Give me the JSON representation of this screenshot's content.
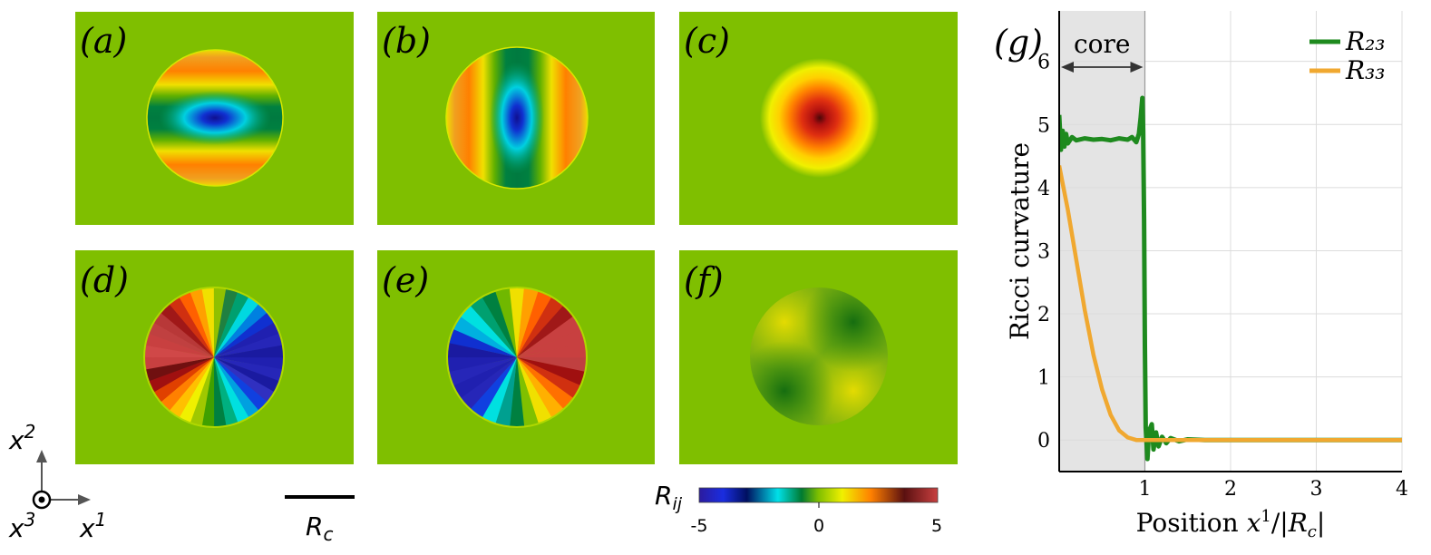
{
  "panels": [
    {
      "label": "(a)",
      "pattern": "a"
    },
    {
      "label": "(b)",
      "pattern": "b"
    },
    {
      "label": "(c)",
      "pattern": "c"
    },
    {
      "label": "(d)",
      "pattern": "d"
    },
    {
      "label": "(e)",
      "pattern": "e"
    },
    {
      "label": "(f)",
      "pattern": "f"
    }
  ],
  "axes_indicator": {
    "x1": "x",
    "x1_sup": "1",
    "x2": "x",
    "x2_sup": "2",
    "x3": "x",
    "x3_sup": "3"
  },
  "scale_bar": {
    "label_main": "R",
    "label_sub": "c"
  },
  "colorbar": {
    "label_main": "R",
    "label_sub": "ij",
    "min": -5,
    "max": 5,
    "ticks": [
      "-5",
      "0",
      "5"
    ],
    "colors": [
      "#2b1b9e",
      "#1a2de0",
      "#001060",
      "#00e0e8",
      "#007a30",
      "#7fbf00",
      "#f0f000",
      "#ff8000",
      "#5a1010",
      "#c84040"
    ]
  },
  "chart_data": {
    "type": "line",
    "panel_label": "(g)",
    "xlabel": "Position x¹/|R_c|",
    "ylabel": "Ricci curvature",
    "xlim": [
      0,
      4
    ],
    "ylim": [
      -0.5,
      6.8
    ],
    "xticks": [
      1,
      2,
      3,
      4
    ],
    "yticks": [
      0,
      1,
      2,
      3,
      4,
      5,
      6
    ],
    "grid": true,
    "legend_position": "top-right",
    "shaded_region": {
      "label": "core",
      "x": [
        0,
        1
      ]
    },
    "series": [
      {
        "name": "R₂₃",
        "color": "#1e8a1e",
        "x": [
          0,
          0.02,
          0.04,
          0.06,
          0.08,
          0.1,
          0.15,
          0.2,
          0.3,
          0.4,
          0.5,
          0.6,
          0.7,
          0.8,
          0.85,
          0.9,
          0.93,
          0.95,
          0.97,
          0.98,
          0.99,
          1.0,
          1.01,
          1.03,
          1.05,
          1.08,
          1.1,
          1.13,
          1.16,
          1.2,
          1.25,
          1.3,
          1.4,
          1.5,
          1.7,
          2.0,
          3.0,
          4.0
        ],
        "values": [
          5.15,
          4.6,
          4.9,
          4.65,
          4.85,
          4.7,
          4.8,
          4.75,
          4.78,
          4.76,
          4.77,
          4.75,
          4.78,
          4.76,
          4.8,
          4.72,
          4.85,
          5.1,
          5.42,
          4.9,
          3.5,
          1.5,
          0.2,
          -0.3,
          0.15,
          0.25,
          -0.15,
          0.12,
          -0.1,
          0.05,
          -0.05,
          0.03,
          -0.02,
          0.01,
          0,
          0,
          0,
          0
        ]
      },
      {
        "name": "R₃₃",
        "color": "#f0a830",
        "x": [
          0,
          0.05,
          0.1,
          0.15,
          0.2,
          0.25,
          0.3,
          0.35,
          0.4,
          0.5,
          0.6,
          0.7,
          0.8,
          0.9,
          1.0,
          1.5,
          2.0,
          3.0,
          4.0
        ],
        "values": [
          4.35,
          4.0,
          3.65,
          3.25,
          2.85,
          2.45,
          2.05,
          1.7,
          1.35,
          0.8,
          0.4,
          0.15,
          0.04,
          0.0,
          0,
          0,
          0,
          0,
          0
        ]
      }
    ]
  }
}
